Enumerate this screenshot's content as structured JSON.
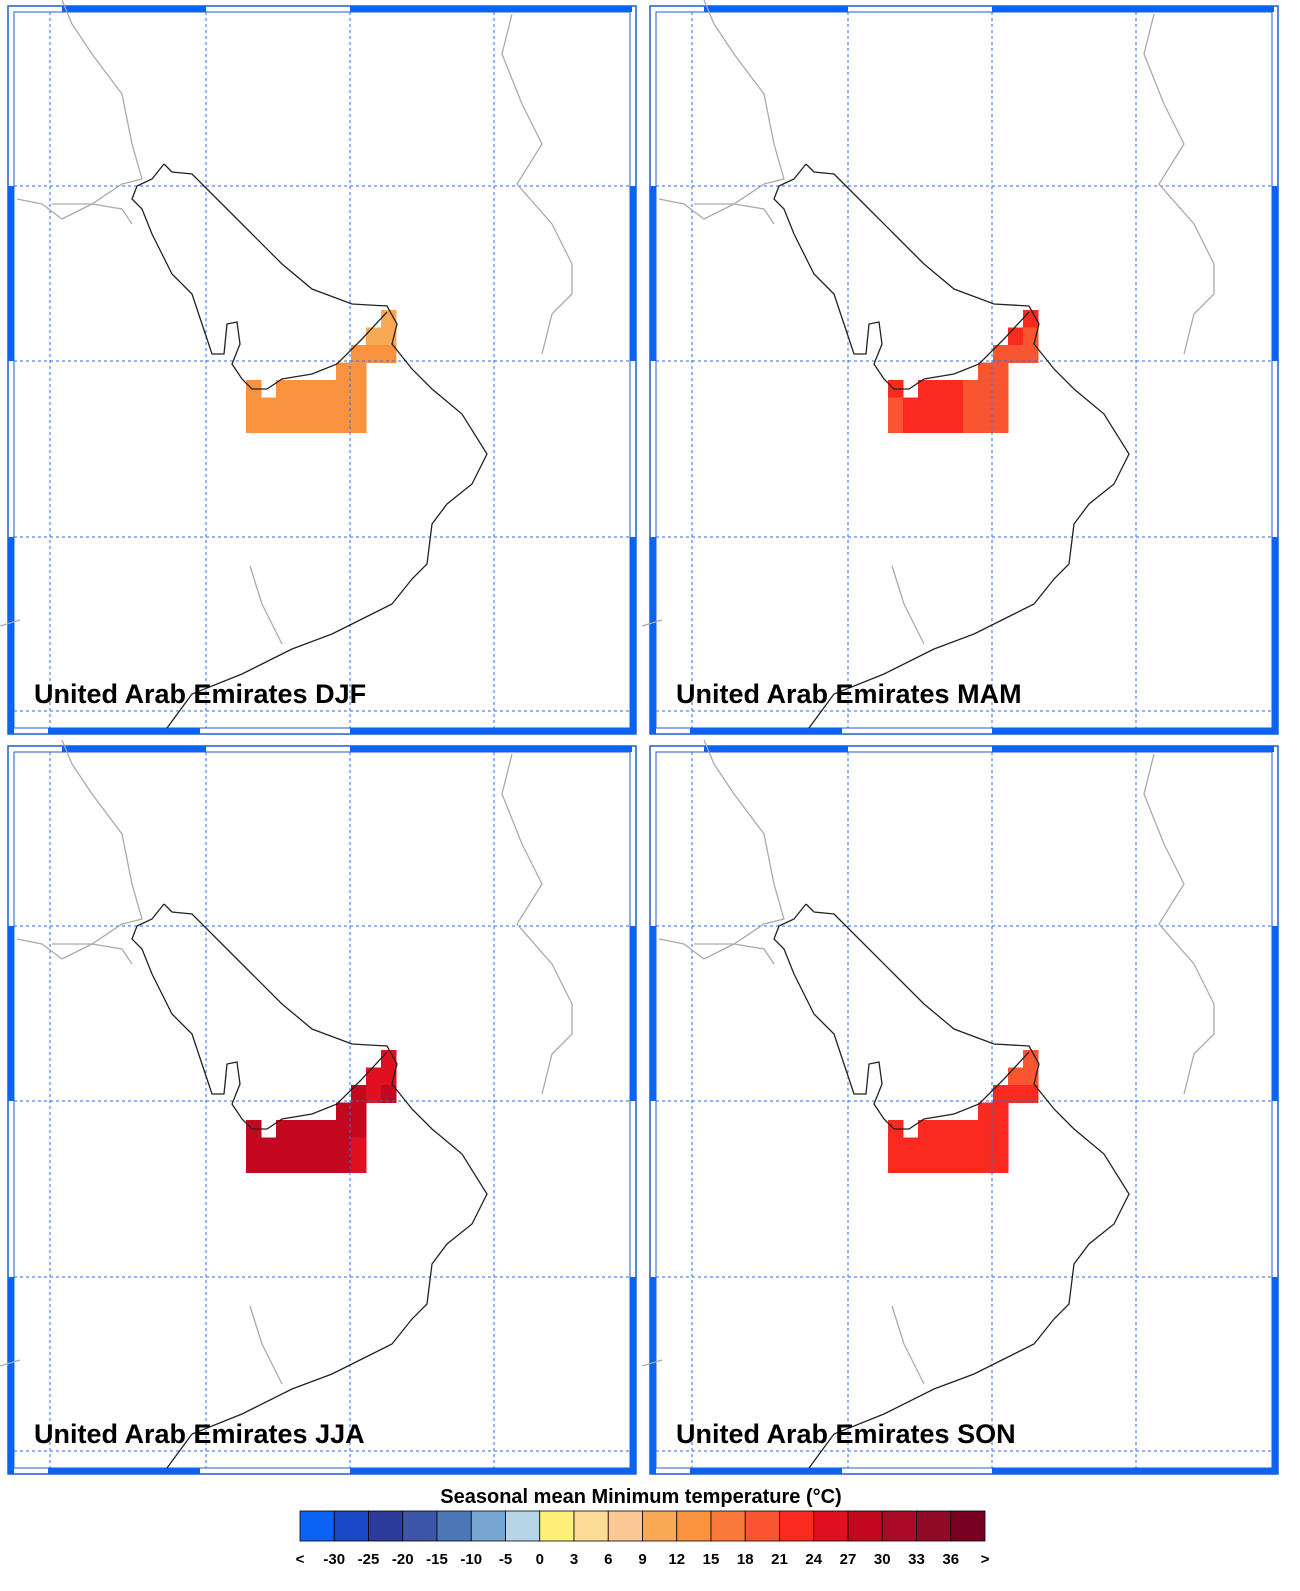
{
  "panels": [
    {
      "title": "United Arab Emirates DJF",
      "values": [
        11,
        11,
        11,
        13.5,
        13.5,
        13.5,
        13.5,
        13.5,
        13.5,
        13.5,
        13.5,
        13.5,
        13.5,
        13.5,
        13.5,
        13.5,
        13.5,
        13.5,
        13.5,
        13.5,
        13.5,
        13.5,
        13.5,
        13.5,
        13.5,
        13.5,
        13.5,
        13.5,
        13.5,
        13.5,
        13.5
      ]
    },
    {
      "title": "United Arab Emirates MAM",
      "values": [
        22.5,
        22.5,
        19.5,
        19.5,
        19.5,
        19.5,
        19.5,
        19.5,
        22.5,
        22.5,
        22.5,
        22.5,
        19.5,
        19.5,
        19.5,
        19.5,
        22.5,
        22.5,
        22.5,
        22.5,
        19.5,
        19.5,
        19.5,
        19.5,
        22.5,
        22.5,
        22.5,
        22.5,
        19.5,
        19.5,
        19.5
      ]
    },
    {
      "title": "United Arab Emirates JJA",
      "values": [
        25.5,
        25.5,
        25.5,
        28.5,
        25.5,
        28.5,
        28.5,
        28.5,
        28.5,
        28.5,
        28.5,
        28.5,
        28.5,
        28.5,
        28.5,
        28.5,
        28.5,
        28.5,
        28.5,
        28.5,
        28.5,
        28.5,
        25.5,
        28.5,
        28.5,
        28.5,
        28.5,
        28.5,
        28.5,
        28.5,
        25.5
      ]
    },
    {
      "title": "United Arab Emirates SON",
      "values": [
        19.5,
        19.5,
        19.5,
        22.5,
        22.5,
        22.5,
        22.5,
        22.5,
        22.5,
        22.5,
        22.5,
        22.5,
        22.5,
        22.5,
        22.5,
        22.5,
        22.5,
        22.5,
        22.5,
        22.5,
        22.5,
        22.5,
        22.5,
        22.5,
        22.5,
        22.5,
        22.5,
        22.5,
        22.5,
        22.5,
        22.5
      ]
    }
  ],
  "colorbar": {
    "title": "Seasonal mean Minimum temperature (°C)",
    "colors": [
      "#0a63f5",
      "#1a48c8",
      "#2c3a9a",
      "#3e56a8",
      "#4d78b8",
      "#78a6d2",
      "#b6d6e8",
      "#fff07a",
      "#fcdc96",
      "#fcc896",
      "#f9a954",
      "#f99340",
      "#f97a3a",
      "#f95530",
      "#fa2a20",
      "#e01020",
      "#c40820",
      "#aa0a28",
      "#900a28",
      "#780020"
    ],
    "labels": [
      "<",
      -30,
      -25,
      -20,
      -15,
      -10,
      -5,
      0,
      3,
      6,
      9,
      12,
      15,
      18,
      21,
      24,
      27,
      30,
      33,
      36,
      ">"
    ]
  }
}
